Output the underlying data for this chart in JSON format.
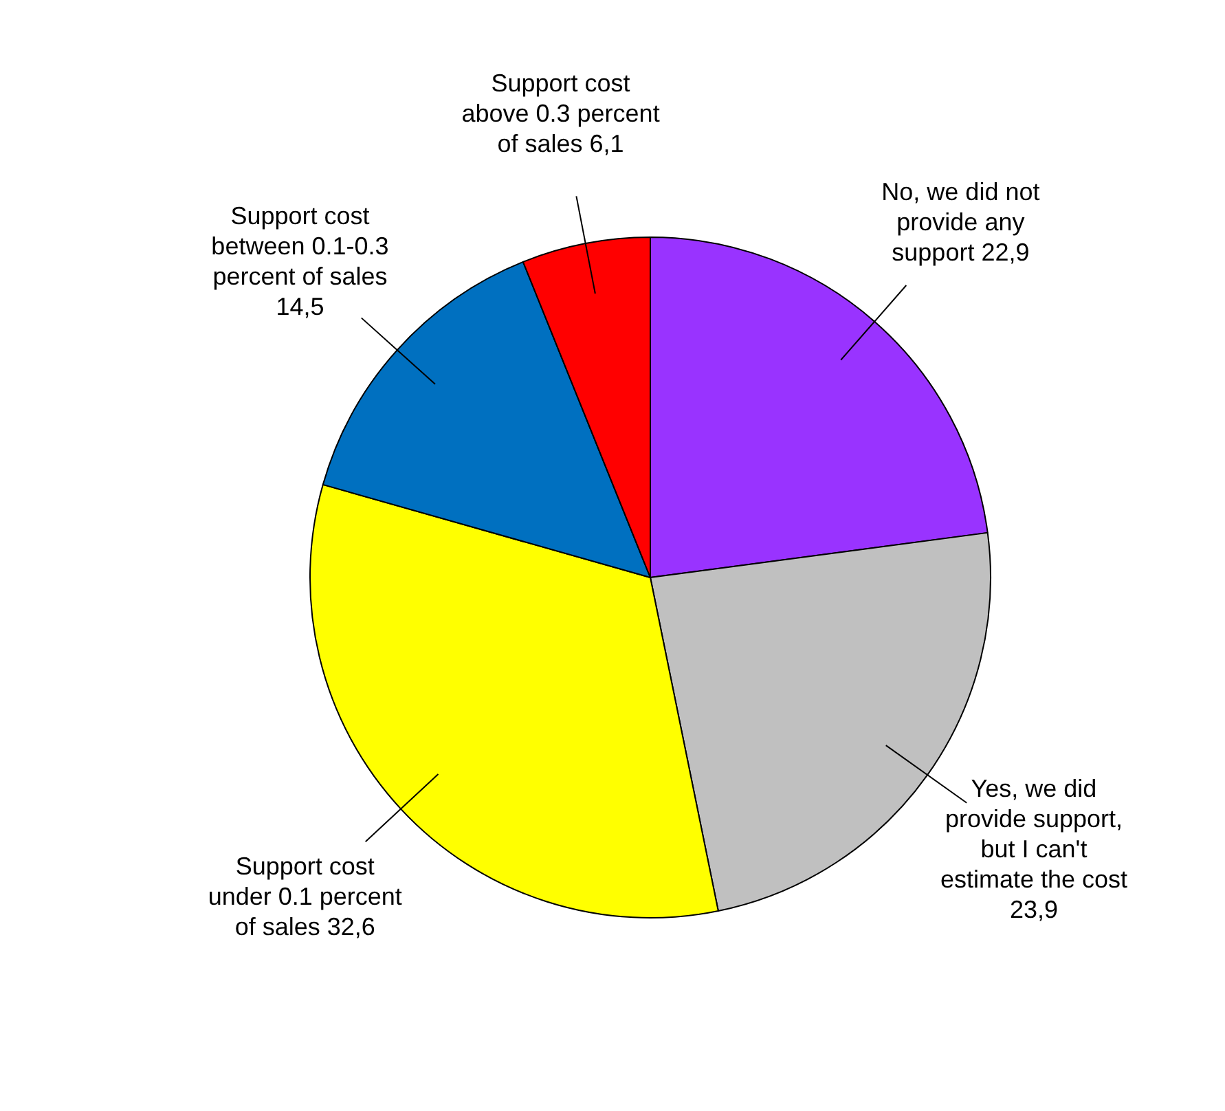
{
  "chart_data": {
    "type": "pie",
    "categories": [
      "No, we did not provide any support",
      "Yes, we did provide support, but I can't estimate the cost",
      "Support cost under 0.1 percent of sales",
      "Support cost between 0.1-0.3 percent of sales",
      "Support cost above 0.3 percent of sales"
    ],
    "values": [
      22.9,
      23.9,
      32.6,
      14.5,
      6.1
    ],
    "value_labels": [
      "22,9",
      "23,9",
      "32,6",
      "14,5",
      "6,1"
    ],
    "colors": [
      "#9933ff",
      "#c0c0c0",
      "#ffff00",
      "#0070c0",
      "#ff0000"
    ],
    "legend": false
  }
}
